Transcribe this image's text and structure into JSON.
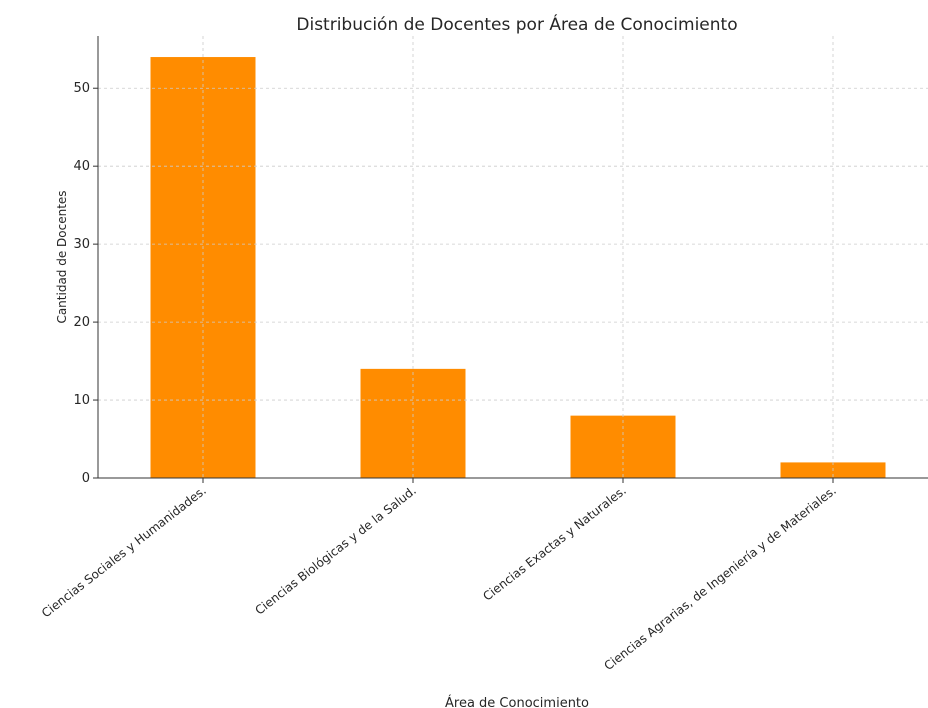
{
  "chart_data": {
    "type": "bar",
    "title": "Distribución de Docentes por Área de Conocimiento",
    "xlabel": "Área de Conocimiento",
    "ylabel": "Cantidad de Docentes",
    "categories": [
      "Ciencias Sociales y Humanidades.",
      "Ciencias Biológicas y de la Salud.",
      "Ciencias Exactas y Naturales.",
      "Ciencias Agrarias, de Ingeniería y de Materiales."
    ],
    "values": [
      54,
      14,
      8,
      2
    ],
    "ylim": [
      0,
      56.7
    ],
    "yticks": [
      0,
      10,
      20,
      30,
      40,
      50
    ],
    "grid": true,
    "bar_color": "#ff8c00",
    "legend": "none"
  }
}
